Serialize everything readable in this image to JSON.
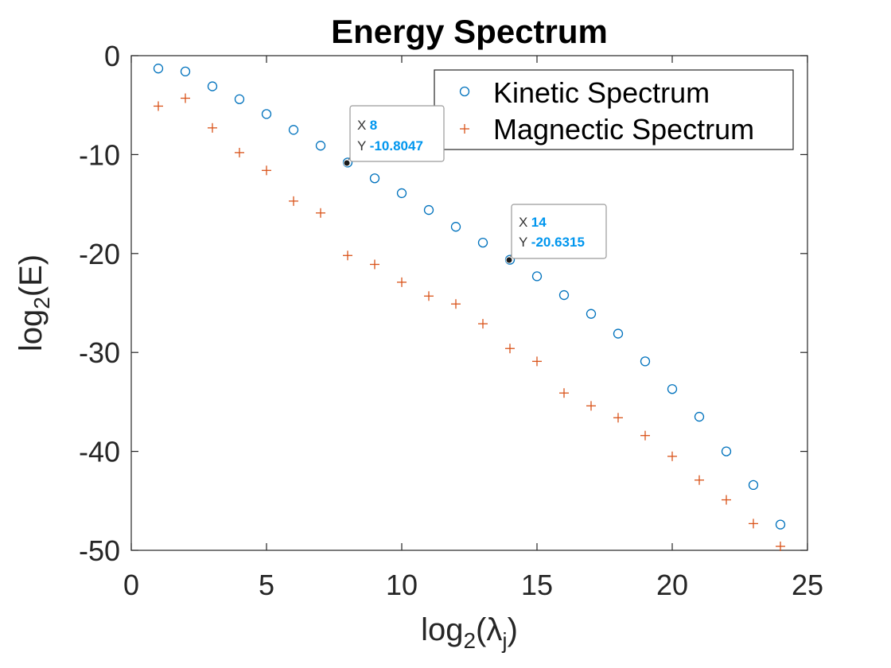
{
  "chart_data": {
    "type": "scatter",
    "title": "Energy Spectrum",
    "xlabel": {
      "base": "log",
      "sub": "2",
      "open": "(",
      "symbol": "λ",
      "symbol_sub": "j",
      "close": ")"
    },
    "ylabel": {
      "base": "log",
      "sub": "2",
      "rest": "(E)"
    },
    "xlim": [
      0,
      25
    ],
    "ylim": [
      -50,
      0
    ],
    "xticks": [
      0,
      5,
      10,
      15,
      20,
      25
    ],
    "xtick_labels": [
      "0",
      "5",
      "10",
      "15",
      "20",
      "25"
    ],
    "yticks": [
      0,
      -10,
      -20,
      -30,
      -40,
      -50
    ],
    "ytick_labels": [
      "0",
      "-10",
      "-20",
      "-30",
      "-40",
      "-50"
    ],
    "legend_position": "top-right",
    "series": [
      {
        "name": "Kinetic Spectrum",
        "marker": "circle",
        "color": "#0072BD",
        "x": [
          1,
          2,
          3,
          4,
          5,
          6,
          7,
          8,
          9,
          10,
          11,
          12,
          13,
          14,
          15,
          16,
          17,
          18,
          19,
          20,
          21,
          22,
          23,
          24
        ],
        "y": [
          -1.3,
          -1.6,
          -3.1,
          -4.4,
          -5.9,
          -7.5,
          -9.1,
          -10.8047,
          -12.4,
          -13.9,
          -15.6,
          -17.3,
          -18.9,
          -20.6315,
          -22.3,
          -24.2,
          -26.1,
          -28.1,
          -30.9,
          -33.7,
          -36.5,
          -40.0,
          -43.4,
          -47.4
        ]
      },
      {
        "name": "Magnectic Spectrum",
        "marker": "plus",
        "color": "#D95319",
        "x": [
          1,
          2,
          3,
          4,
          5,
          6,
          7,
          8,
          9,
          10,
          11,
          12,
          13,
          14,
          15,
          16,
          17,
          18,
          19,
          20,
          21,
          22,
          23,
          24
        ],
        "y": [
          -5.1,
          -4.3,
          -7.3,
          -9.8,
          -11.6,
          -14.7,
          -15.9,
          -20.2,
          -21.1,
          -22.9,
          -24.3,
          -25.1,
          -27.1,
          -29.6,
          -30.9,
          -34.1,
          -35.4,
          -36.6,
          -38.4,
          -40.5,
          -42.9,
          -44.9,
          -47.3,
          -49.6
        ]
      }
    ],
    "datatips": [
      {
        "x_label": "X",
        "x_value": "8",
        "y_label": "Y",
        "y_value": "-10.8047",
        "x": 8,
        "y": -10.8047
      },
      {
        "x_label": "X",
        "x_value": "14",
        "y_label": "Y",
        "y_value": "-20.6315",
        "x": 14,
        "y": -20.6315
      }
    ],
    "colors": {
      "axis": "#262626",
      "tip_value": "#0096EE",
      "tip_border": "#9a9a9a"
    }
  }
}
